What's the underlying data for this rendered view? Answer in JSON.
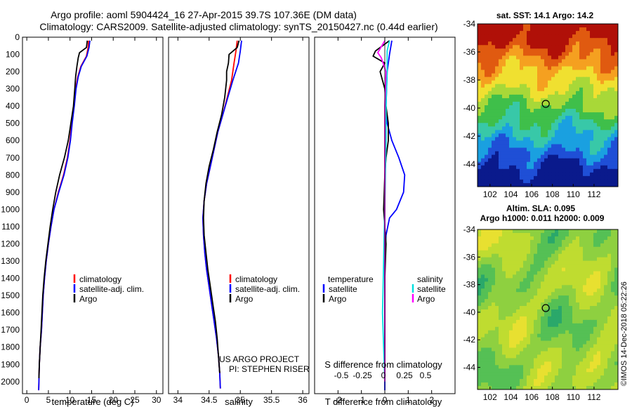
{
  "header": {
    "line1": "Argo profile: aoml 5904424_16 27-Apr-2015 39.7S 107.36E (DM data)",
    "line2": "Climatology: CARS2009. Satellite-adjusted climatology: synTS_20150427.nc (0.44d earlier)"
  },
  "colors": {
    "climatology": "#ff0000",
    "satellite": "#0000ff",
    "argo": "#000000",
    "sat_salinity": "#00e0e0",
    "argo_salinity": "#ff00ff"
  },
  "chart_data": [
    {
      "type": "line",
      "id": "temperature",
      "xlabel": "temperature (deg C)",
      "ylabel": "",
      "xlim": [
        -1,
        31.5
      ],
      "ylim": [
        2070,
        0
      ],
      "xticks": [
        0,
        5,
        10,
        15,
        20,
        25,
        30
      ],
      "yticks": [
        0,
        100,
        200,
        300,
        400,
        500,
        600,
        700,
        800,
        900,
        1000,
        1100,
        1200,
        1300,
        1400,
        1500,
        1600,
        1700,
        1800,
        1900,
        2000
      ],
      "legend": [
        "climatology",
        "satellite-adj. clim.",
        "Argo"
      ],
      "legend_position": "center-right",
      "series": [
        {
          "name": "climatology",
          "color_key": "climatology",
          "points": [
            [
              14.3,
              20
            ],
            [
              14.2,
              60
            ],
            [
              13.8,
              110
            ],
            [
              12.5,
              170
            ],
            [
              11.8,
              230
            ],
            [
              11.3,
              300
            ],
            [
              10.9,
              400
            ],
            [
              10.4,
              500
            ],
            [
              10.0,
              600
            ],
            [
              9.4,
              700
            ],
            [
              8.5,
              800
            ],
            [
              7.3,
              900
            ],
            [
              6.3,
              1000
            ],
            [
              5.6,
              1100
            ],
            [
              5.0,
              1200
            ],
            [
              4.5,
              1300
            ],
            [
              4.1,
              1400
            ],
            [
              3.8,
              1500
            ],
            [
              3.6,
              1600
            ],
            [
              3.4,
              1700
            ],
            [
              3.1,
              1800
            ],
            [
              2.9,
              1900
            ],
            [
              2.8,
              2000
            ],
            [
              2.75,
              2050
            ]
          ]
        },
        {
          "name": "satellite-adj. clim.",
          "color_key": "satellite",
          "points": [
            [
              14.6,
              20
            ],
            [
              14.4,
              60
            ],
            [
              13.9,
              110
            ],
            [
              12.6,
              170
            ],
            [
              11.9,
              230
            ],
            [
              11.4,
              300
            ],
            [
              11.0,
              400
            ],
            [
              10.5,
              500
            ],
            [
              10.1,
              600
            ],
            [
              9.5,
              700
            ],
            [
              8.6,
              800
            ],
            [
              7.4,
              900
            ],
            [
              6.3,
              1000
            ],
            [
              5.6,
              1100
            ],
            [
              5.0,
              1200
            ],
            [
              4.5,
              1300
            ],
            [
              4.1,
              1400
            ],
            [
              3.8,
              1500
            ],
            [
              3.6,
              1600
            ],
            [
              3.4,
              1700
            ],
            [
              3.1,
              1800
            ],
            [
              2.9,
              1900
            ],
            [
              2.8,
              2000
            ],
            [
              2.75,
              2050
            ]
          ]
        },
        {
          "name": "Argo",
          "color_key": "argo",
          "points": [
            [
              14.0,
              20
            ],
            [
              13.8,
              60
            ],
            [
              12.2,
              90
            ],
            [
              11.9,
              120
            ],
            [
              11.6,
              170
            ],
            [
              11.3,
              230
            ],
            [
              11.1,
              300
            ],
            [
              10.8,
              400
            ],
            [
              10.2,
              500
            ],
            [
              9.6,
              600
            ],
            [
              8.7,
              700
            ],
            [
              7.6,
              800
            ],
            [
              6.7,
              900
            ],
            [
              6.0,
              1000
            ],
            [
              5.4,
              1100
            ],
            [
              4.9,
              1200
            ],
            [
              4.4,
              1300
            ],
            [
              4.0,
              1400
            ],
            [
              3.7,
              1500
            ],
            [
              3.5,
              1600
            ],
            [
              3.3,
              1700
            ],
            [
              3.1,
              1800
            ],
            [
              2.9,
              1900
            ],
            [
              2.8,
              1980
            ]
          ]
        }
      ]
    },
    {
      "type": "line",
      "id": "salinity",
      "xlabel": "salinity",
      "ylabel": "",
      "xlim": [
        33.85,
        36.1
      ],
      "ylim": [
        2070,
        0
      ],
      "xticks": [
        34,
        34.5,
        35,
        35.5,
        36
      ],
      "legend": [
        "climatology",
        "satellite-adj. clim.",
        "Argo"
      ],
      "legend_position": "center-right",
      "annotation": [
        "US ARGO PROJECT",
        "PI: STEPHEN RISER"
      ],
      "series": [
        {
          "name": "climatology",
          "color_key": "climatology",
          "points": [
            [
              34.95,
              20
            ],
            [
              34.93,
              80
            ],
            [
              34.9,
              150
            ],
            [
              34.86,
              250
            ],
            [
              34.79,
              350
            ],
            [
              34.72,
              450
            ],
            [
              34.64,
              550
            ],
            [
              34.58,
              650
            ],
            [
              34.52,
              750
            ],
            [
              34.46,
              850
            ],
            [
              34.42,
              950
            ],
            [
              34.4,
              1050
            ],
            [
              34.41,
              1150
            ],
            [
              34.43,
              1250
            ],
            [
              34.46,
              1350
            ],
            [
              34.5,
              1450
            ],
            [
              34.54,
              1550
            ],
            [
              34.58,
              1650
            ],
            [
              34.62,
              1750
            ],
            [
              34.65,
              1850
            ],
            [
              34.67,
              1950
            ],
            [
              34.68,
              2040
            ]
          ]
        },
        {
          "name": "satellite-adj. clim.",
          "color_key": "satellite",
          "points": [
            [
              35.02,
              20
            ],
            [
              35.0,
              80
            ],
            [
              34.97,
              150
            ],
            [
              34.88,
              250
            ],
            [
              34.8,
              350
            ],
            [
              34.72,
              450
            ],
            [
              34.64,
              550
            ],
            [
              34.58,
              650
            ],
            [
              34.52,
              750
            ],
            [
              34.46,
              850
            ],
            [
              34.42,
              950
            ],
            [
              34.4,
              1050
            ],
            [
              34.41,
              1150
            ],
            [
              34.43,
              1250
            ],
            [
              34.46,
              1350
            ],
            [
              34.5,
              1450
            ],
            [
              34.54,
              1550
            ],
            [
              34.58,
              1650
            ],
            [
              34.62,
              1750
            ],
            [
              34.65,
              1850
            ],
            [
              34.67,
              1950
            ],
            [
              34.68,
              2040
            ]
          ]
        },
        {
          "name": "Argo",
          "color_key": "argo",
          "points": [
            [
              34.98,
              20
            ],
            [
              34.95,
              60
            ],
            [
              34.82,
              100
            ],
            [
              34.81,
              150
            ],
            [
              34.78,
              200
            ],
            [
              34.78,
              250
            ],
            [
              34.75,
              350
            ],
            [
              34.7,
              450
            ],
            [
              34.63,
              550
            ],
            [
              34.57,
              650
            ],
            [
              34.5,
              750
            ],
            [
              34.45,
              850
            ],
            [
              34.42,
              950
            ],
            [
              34.41,
              1050
            ],
            [
              34.42,
              1150
            ],
            [
              34.45,
              1250
            ],
            [
              34.48,
              1350
            ],
            [
              34.52,
              1450
            ],
            [
              34.56,
              1550
            ],
            [
              34.6,
              1650
            ],
            [
              34.63,
              1750
            ],
            [
              34.65,
              1850
            ],
            [
              34.67,
              1950
            ]
          ]
        }
      ]
    },
    {
      "type": "line",
      "id": "differences",
      "xlabel": "T difference from climatology",
      "xlabel2": "S difference from climatology",
      "xlim": [
        -3,
        3
      ],
      "ylim": [
        2070,
        0
      ],
      "xticks": [
        -2,
        -1,
        0,
        1,
        2
      ],
      "xtick_labels": [
        "-2",
        "-1",
        "0",
        "1",
        "2"
      ],
      "xticks2": [
        -0.5,
        -0.25,
        0,
        0.25,
        0.5
      ],
      "xtick2_labels": [
        "-0.5",
        "-0.25",
        "0",
        "0.25",
        "0.5"
      ],
      "legend_temperature_title": "temperature",
      "legend_temperature": [
        "satellite",
        "Argo"
      ],
      "legend_salinity_title": "salinity",
      "legend_salinity": [
        "satellite",
        "Argo"
      ],
      "series": [
        {
          "name": "temperature satellite",
          "color_key": "satellite",
          "points": [
            [
              0.3,
              20
            ],
            [
              0.2,
              100
            ],
            [
              0.1,
              200
            ],
            [
              0.05,
              400
            ],
            [
              0.1,
              500
            ],
            [
              0.3,
              600
            ],
            [
              0.6,
              700
            ],
            [
              0.85,
              800
            ],
            [
              0.8,
              900
            ],
            [
              0.5,
              1000
            ],
            [
              0.2,
              1050
            ],
            [
              0.05,
              1150
            ],
            [
              0.0,
              1300
            ],
            [
              0.0,
              1500
            ],
            [
              0.0,
              1800
            ],
            [
              0.0,
              2050
            ]
          ]
        },
        {
          "name": "temperature Argo",
          "color_key": "argo",
          "points": [
            [
              0.2,
              20
            ],
            [
              -0.4,
              80
            ],
            [
              -0.5,
              110
            ],
            [
              0.0,
              150
            ],
            [
              -0.2,
              200
            ],
            [
              0.0,
              300
            ],
            [
              0.05,
              400
            ],
            [
              0.15,
              500
            ],
            [
              0.15,
              600
            ],
            [
              0.05,
              700
            ],
            [
              0.0,
              800
            ],
            [
              -0.05,
              1000
            ],
            [
              0.0,
              1100
            ],
            [
              0.05,
              1200
            ],
            [
              0.0,
              1400
            ],
            [
              0.0,
              1600
            ],
            [
              0.0,
              1800
            ],
            [
              0.0,
              2000
            ]
          ]
        },
        {
          "name": "salinity satellite",
          "color_key": "sat_salinity",
          "points": [
            [
              0.2,
              20
            ],
            [
              0.1,
              80
            ],
            [
              0.1,
              200
            ],
            [
              0.05,
              400
            ],
            [
              0.05,
              600
            ],
            [
              0.02,
              800
            ],
            [
              0.0,
              1000
            ],
            [
              -0.03,
              1150
            ],
            [
              -0.05,
              1300
            ],
            [
              -0.08,
              1500
            ],
            [
              -0.1,
              1600
            ],
            [
              -0.05,
              1800
            ],
            [
              0.0,
              2000
            ]
          ]
        },
        {
          "name": "salinity Argo",
          "color_key": "argo_salinity",
          "points": [
            [
              0.0,
              20
            ],
            [
              -0.3,
              90
            ],
            [
              -0.15,
              120
            ],
            [
              0.05,
              200
            ],
            [
              0.0,
              400
            ],
            [
              0.0,
              800
            ],
            [
              0.0,
              1200
            ],
            [
              0.0,
              1500
            ],
            [
              0.0,
              1800
            ],
            [
              0.0,
              2000
            ]
          ]
        }
      ]
    },
    {
      "type": "heatmap",
      "id": "sst_map",
      "title": "sat. SST: 14.1  Argo: 14.2",
      "xlim": [
        100.8,
        114.3
      ],
      "ylim": [
        -45.6,
        -34
      ],
      "xticks": [
        102,
        104,
        106,
        108,
        110,
        112
      ],
      "yticks": [
        -34,
        -36,
        -38,
        -40,
        -42,
        -44
      ],
      "marker": {
        "lon": 107.36,
        "lat": -39.7
      },
      "palette": [
        "#0a1a8c",
        "#1f4fd6",
        "#1aa0e0",
        "#38c8a8",
        "#3fbf4a",
        "#a8d838",
        "#f0e030",
        "#f5a020",
        "#e05a10",
        "#b01008"
      ]
    },
    {
      "type": "heatmap",
      "id": "sla_map",
      "title": "Altim. SLA: 0.095",
      "subtitle": "Argo h1000: 0.011  h2000: 0.009",
      "xlim": [
        100.8,
        114.3
      ],
      "ylim": [
        -45.6,
        -34
      ],
      "xticks": [
        102,
        104,
        106,
        108,
        110,
        112
      ],
      "yticks": [
        -34,
        -36,
        -38,
        -40,
        -42,
        -44
      ],
      "marker": {
        "lon": 107.36,
        "lat": -39.7
      },
      "palette": [
        "#2aa86a",
        "#55c055",
        "#8ed040",
        "#bfdc30",
        "#e8e030",
        "#f0b828"
      ]
    }
  ],
  "credit": "©IMOS 14-Dec-2018 05:22:26"
}
